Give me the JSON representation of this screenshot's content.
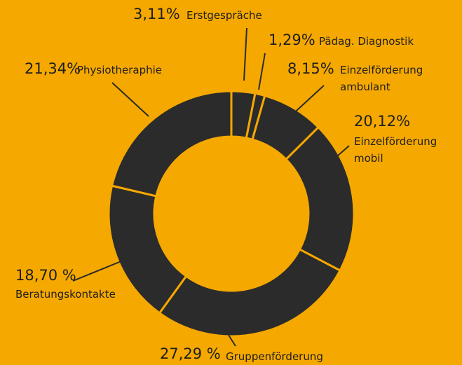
{
  "chart_data": {
    "type": "donut",
    "categories": [
      [
        "Erstgespräche"
      ],
      [
        "Pädag. Diagnostik"
      ],
      [
        "Einzelförderung",
        "ambulant"
      ],
      [
        "Einzelförderung",
        "mobil"
      ],
      [
        "Gruppenförderung"
      ],
      [
        "Beratungskontakte"
      ],
      [
        "Physiotheraphie"
      ]
    ],
    "values": [
      3.11,
      1.29,
      8.15,
      20.12,
      27.29,
      18.7,
      21.34
    ],
    "value_labels": [
      "3,11%",
      "1,29%",
      "8,15%",
      "20,12%",
      "27,29 %",
      "18,70 %",
      "21,34%"
    ],
    "color": "#2b2b2b",
    "background": "#f5a800"
  }
}
